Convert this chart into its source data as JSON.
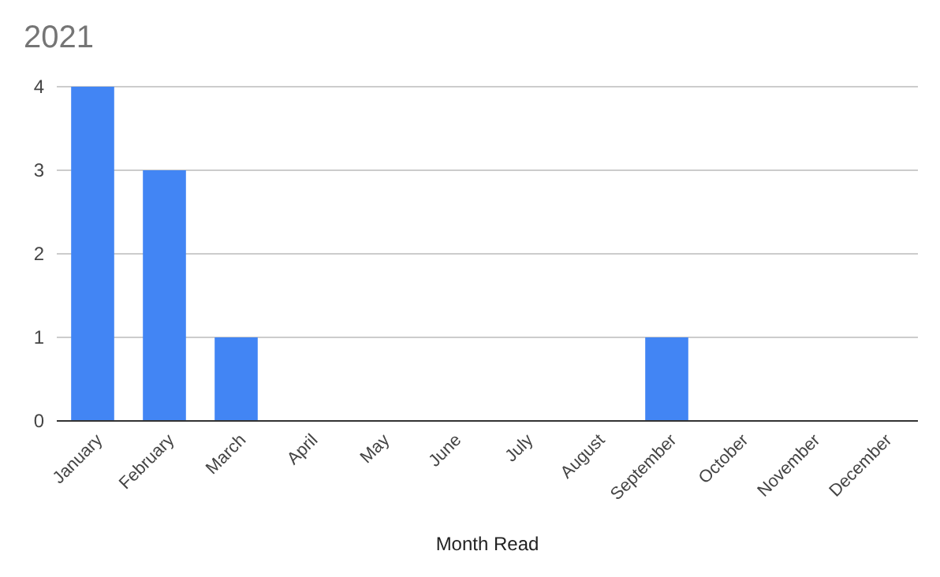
{
  "chart_data": {
    "type": "bar",
    "title": "2021",
    "xlabel": "Month Read",
    "categories": [
      "January",
      "February",
      "March",
      "April",
      "May",
      "June",
      "July",
      "August",
      "September",
      "October",
      "November",
      "December"
    ],
    "values": [
      4,
      3,
      1,
      0,
      0,
      0,
      0,
      0,
      1,
      0,
      0,
      0
    ],
    "color": "#4285f4",
    "ylim": [
      0,
      4
    ],
    "yticks": [
      0,
      1,
      2,
      3,
      4
    ],
    "grid": "y"
  }
}
